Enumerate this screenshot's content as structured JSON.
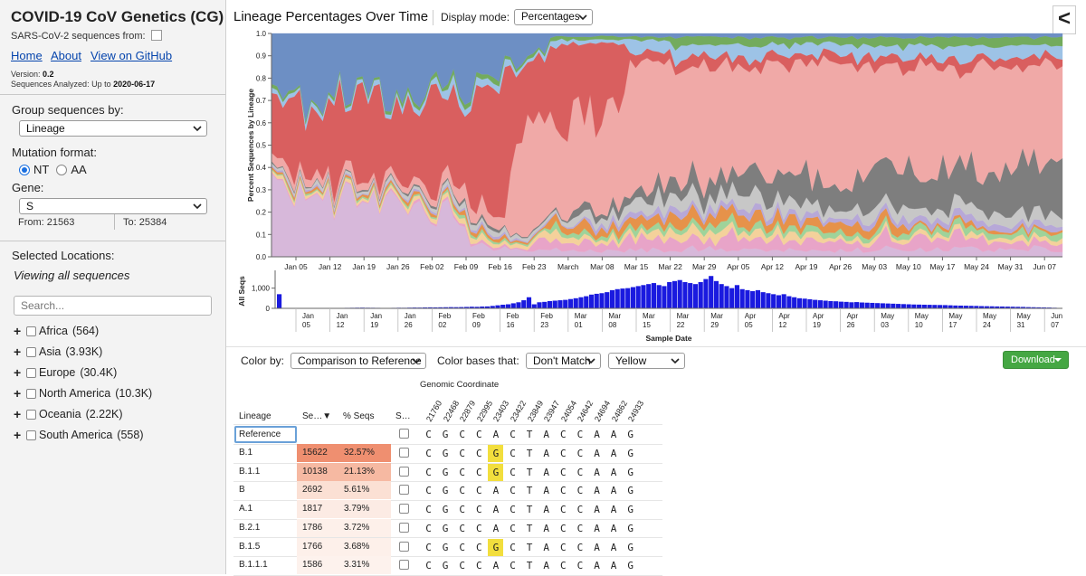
{
  "sidebar": {
    "title": "COVID-19 CoV Genetics (CG)",
    "source_text": "SARS-CoV-2 sequences from:",
    "nav": [
      {
        "label": "Home"
      },
      {
        "label": "About"
      },
      {
        "label": "View on GitHub"
      }
    ],
    "version_label": "Version:",
    "version": "0.2",
    "seqs_label": "Sequences Analyzed: Up to",
    "seqs_date": "2020-06-17",
    "group_by_label": "Group sequences by:",
    "group_by_value": "Lineage",
    "mutation_label": "Mutation format:",
    "mutation_options": [
      "NT",
      "AA"
    ],
    "mutation_selected": "NT",
    "gene_label": "Gene:",
    "gene_value": "S",
    "from_text": "From: 21563",
    "to_text": "To: 25384",
    "locations_label": "Selected Locations:",
    "viewing_all": "Viewing all sequences",
    "search_placeholder": "Search...",
    "locations": [
      {
        "name": "Africa",
        "count": "(564)"
      },
      {
        "name": "Asia",
        "count": "(3.93K)"
      },
      {
        "name": "Europe",
        "count": "(30.4K)"
      },
      {
        "name": "North America",
        "count": "(10.3K)"
      },
      {
        "name": "Oceania",
        "count": "(2.22K)"
      },
      {
        "name": "South America",
        "count": "(558)"
      }
    ]
  },
  "main": {
    "title": "Lineage Percentages Over Time",
    "display_mode_label": "Display mode:",
    "display_mode_value": "Percentages",
    "collapse_label": "<"
  },
  "chart_data": [
    {
      "type": "area",
      "ylabel": "Percent Sequences by Lineage",
      "ylim": [
        0,
        1
      ],
      "yticks": [
        "0.0",
        "0.1",
        "0.2",
        "0.3",
        "0.4",
        "0.5",
        "0.6",
        "0.7",
        "0.8",
        "0.9",
        "1.0"
      ],
      "xticks": [
        "Jan 05",
        "Jan 12",
        "Jan 19",
        "Jan 26",
        "Feb 02",
        "Feb 09",
        "Feb 16",
        "Feb 23",
        "March",
        "Mar 08",
        "Mar 15",
        "Mar 22",
        "Mar 29",
        "Apr 05",
        "Apr 12",
        "Apr 19",
        "Apr 26",
        "May 03",
        "May 10",
        "May 17",
        "May 24",
        "May 31",
        "Jun 07"
      ],
      "stacked": true,
      "normalized": true,
      "series_colors": [
        "#d7b8da",
        "#e8a4c8",
        "#f4d19b",
        "#9fd39a",
        "#e6924a",
        "#b7a8d8",
        "#c7c7c7",
        "#7e7e7e",
        "#f0a9a7",
        "#d95f5f",
        "#9dc3e6",
        "#73ab5d",
        "#6d8fc4"
      ]
    },
    {
      "type": "bar",
      "ylabel": "All Seqs",
      "xlabel": "Sample Date",
      "yticks": [
        "0",
        "1,000"
      ],
      "ylim": [
        0,
        1700
      ],
      "xticks": [
        [
          "Jan",
          "05"
        ],
        [
          "Jan",
          "12"
        ],
        [
          "Jan",
          "19"
        ],
        [
          "Jan",
          "26"
        ],
        [
          "Feb",
          "02"
        ],
        [
          "Feb",
          "09"
        ],
        [
          "Feb",
          "16"
        ],
        [
          "Feb",
          "23"
        ],
        [
          "Mar",
          "01"
        ],
        [
          "Mar",
          "08"
        ],
        [
          "Mar",
          "15"
        ],
        [
          "Mar",
          "22"
        ],
        [
          "Mar",
          "29"
        ],
        [
          "Apr",
          "05"
        ],
        [
          "Apr",
          "12"
        ],
        [
          "Apr",
          "19"
        ],
        [
          "Apr",
          "26"
        ],
        [
          "May",
          "03"
        ],
        [
          "May",
          "10"
        ],
        [
          "May",
          "17"
        ],
        [
          "May",
          "24"
        ],
        [
          "May",
          "31"
        ],
        [
          "Jun",
          "07"
        ]
      ],
      "color": "#1a1adf",
      "values": [
        700,
        5,
        3,
        5,
        4,
        8,
        10,
        6,
        8,
        12,
        15,
        18,
        22,
        25,
        28,
        32,
        35,
        30,
        28,
        25,
        22,
        20,
        25,
        30,
        28,
        35,
        40,
        38,
        45,
        50,
        48,
        52,
        55,
        60,
        58,
        62,
        70,
        80,
        75,
        90,
        95,
        120,
        150,
        180,
        200,
        250,
        300,
        400,
        550,
        200,
        300,
        320,
        360,
        380,
        400,
        420,
        460,
        500,
        550,
        600,
        680,
        720,
        750,
        800,
        900,
        950,
        980,
        1000,
        1050,
        1100,
        1150,
        1200,
        1250,
        1150,
        1100,
        1300,
        1350,
        1400,
        1300,
        1250,
        1200,
        1300,
        1450,
        1600,
        1350,
        1200,
        1100,
        1000,
        1150,
        950,
        900,
        850,
        900,
        800,
        750,
        700,
        650,
        700,
        600,
        550,
        500,
        480,
        450,
        420,
        400,
        380,
        360,
        350,
        330,
        320,
        300,
        310,
        290,
        280,
        270,
        260,
        250,
        240,
        230,
        220,
        210,
        200,
        190,
        185,
        180,
        175,
        170,
        165,
        160,
        150,
        140,
        135,
        130,
        125,
        120,
        110,
        105,
        100,
        95,
        90,
        85,
        80,
        75,
        70,
        60,
        55,
        50,
        45,
        40,
        30,
        20
      ]
    }
  ],
  "controls": {
    "color_by_label": "Color by:",
    "color_by_value": "Comparison to Reference",
    "color_bases_label": "Color bases that:",
    "color_bases_value": "Don't Match",
    "color_value": "Yellow",
    "download_label": "Download"
  },
  "table": {
    "genomic_label": "Genomic Coordinate",
    "headers": {
      "lineage": "Lineage",
      "seqs": "Se…▼",
      "pct": "% Seqs",
      "s": "S…"
    },
    "positions": [
      "21760",
      "22468",
      "22879",
      "22995",
      "23403",
      "23422",
      "23849",
      "23947",
      "24054",
      "24642",
      "24694",
      "24862",
      "24933"
    ],
    "shade_colors": [
      "#ef8f70",
      "#f6b9a2",
      "#fbe0d4",
      "#fcebe4",
      "#fdf0ea",
      "#fdf0ea",
      "#fdf2ed"
    ],
    "reference": {
      "label": "Reference",
      "bases": [
        "C",
        "G",
        "C",
        "C",
        "A",
        "C",
        "T",
        "A",
        "C",
        "C",
        "A",
        "A",
        "G"
      ]
    },
    "rows": [
      {
        "lineage": "B.1",
        "seqs": "15622",
        "pct": "32.57%",
        "bases": [
          "C",
          "G",
          "C",
          "C",
          "G",
          "C",
          "T",
          "A",
          "C",
          "C",
          "A",
          "A",
          "G"
        ],
        "hl": [
          4
        ]
      },
      {
        "lineage": "B.1.1",
        "seqs": "10138",
        "pct": "21.13%",
        "bases": [
          "C",
          "G",
          "C",
          "C",
          "G",
          "C",
          "T",
          "A",
          "C",
          "C",
          "A",
          "A",
          "G"
        ],
        "hl": [
          4
        ]
      },
      {
        "lineage": "B",
        "seqs": "2692",
        "pct": "5.61%",
        "bases": [
          "C",
          "G",
          "C",
          "C",
          "A",
          "C",
          "T",
          "A",
          "C",
          "C",
          "A",
          "A",
          "G"
        ],
        "hl": []
      },
      {
        "lineage": "A.1",
        "seqs": "1817",
        "pct": "3.79%",
        "bases": [
          "C",
          "G",
          "C",
          "C",
          "A",
          "C",
          "T",
          "A",
          "C",
          "C",
          "A",
          "A",
          "G"
        ],
        "hl": []
      },
      {
        "lineage": "B.2.1",
        "seqs": "1786",
        "pct": "3.72%",
        "bases": [
          "C",
          "G",
          "C",
          "C",
          "A",
          "C",
          "T",
          "A",
          "C",
          "C",
          "A",
          "A",
          "G"
        ],
        "hl": []
      },
      {
        "lineage": "B.1.5",
        "seqs": "1766",
        "pct": "3.68%",
        "bases": [
          "C",
          "G",
          "C",
          "C",
          "G",
          "C",
          "T",
          "A",
          "C",
          "C",
          "A",
          "A",
          "G"
        ],
        "hl": [
          4
        ]
      },
      {
        "lineage": "B.1.1.1",
        "seqs": "1586",
        "pct": "3.31%",
        "bases": [
          "C",
          "G",
          "C",
          "C",
          "A",
          "C",
          "T",
          "A",
          "C",
          "C",
          "A",
          "A",
          "G"
        ],
        "hl": []
      }
    ]
  }
}
